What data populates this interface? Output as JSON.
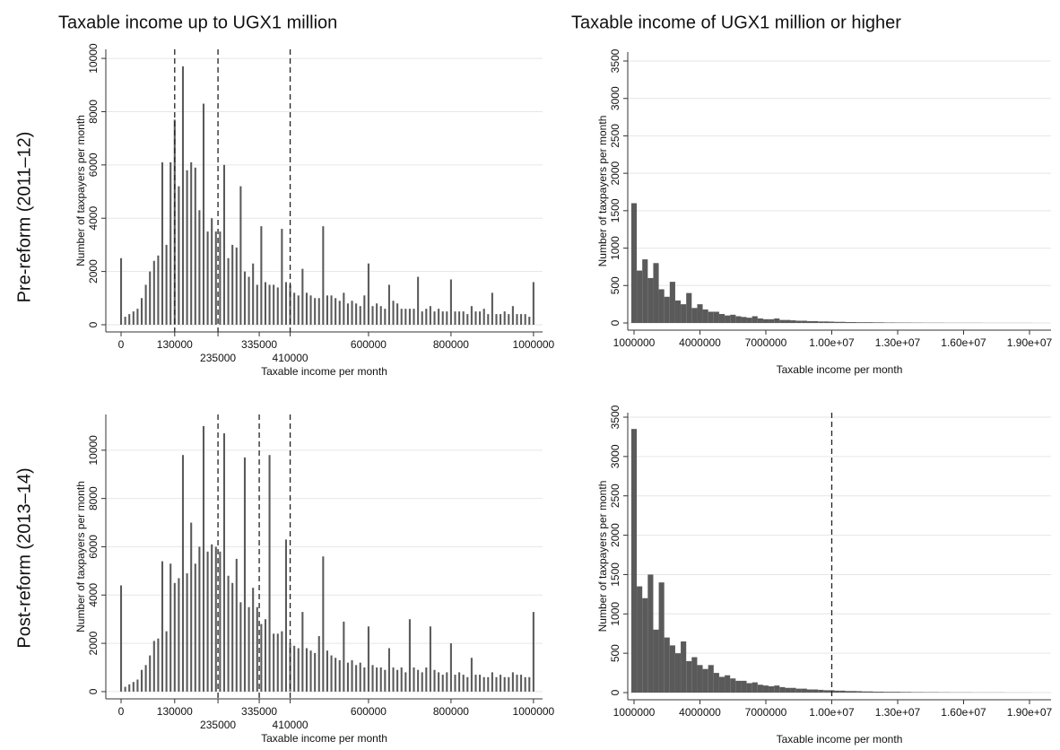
{
  "column_titles": [
    "Taxable income up to UGX1 million",
    "Taxable income of UGX1 million or higher"
  ],
  "row_labels": [
    "Pre-reform (2011–12)",
    "Post-reform (2013–14)"
  ],
  "chart_data": [
    {
      "type": "bar",
      "x_label": "Taxable income per month",
      "y_label": "Number of taxpayers per month",
      "color": "#5a5a5a",
      "grid": true,
      "xlim": [
        -37000,
        1022000
      ],
      "ylim": [
        -270,
        10340
      ],
      "xticks": [
        0,
        130000,
        235000,
        335000,
        410000,
        600000,
        800000,
        1000000
      ],
      "yticks": [
        0,
        2000,
        4000,
        6000,
        8000,
        10000
      ],
      "reference_lines": [
        130000,
        235000,
        410000
      ],
      "x": [
        0,
        10000,
        20000,
        30000,
        40000,
        50000,
        60000,
        70000,
        80000,
        90000,
        100000,
        110000,
        120000,
        130000,
        140000,
        150000,
        160000,
        170000,
        180000,
        190000,
        200000,
        210000,
        220000,
        230000,
        240000,
        250000,
        260000,
        270000,
        280000,
        290000,
        300000,
        310000,
        320000,
        330000,
        340000,
        350000,
        360000,
        370000,
        380000,
        390000,
        400000,
        410000,
        420000,
        430000,
        440000,
        450000,
        460000,
        470000,
        480000,
        490000,
        500000,
        510000,
        520000,
        530000,
        540000,
        550000,
        560000,
        570000,
        580000,
        590000,
        600000,
        610000,
        620000,
        630000,
        640000,
        650000,
        660000,
        670000,
        680000,
        690000,
        700000,
        710000,
        720000,
        730000,
        740000,
        750000,
        760000,
        770000,
        780000,
        790000,
        800000,
        810000,
        820000,
        830000,
        840000,
        850000,
        860000,
        870000,
        880000,
        890000,
        900000,
        910000,
        920000,
        930000,
        940000,
        950000,
        960000,
        970000,
        980000,
        990000,
        1000000
      ],
      "values": [
        2500,
        300,
        400,
        500,
        600,
        1000,
        1500,
        2000,
        2400,
        2600,
        6100,
        3000,
        6100,
        7700,
        5200,
        9700,
        5800,
        6100,
        5900,
        4300,
        8300,
        3500,
        4000,
        3500,
        3500,
        6000,
        2500,
        3000,
        2900,
        5200,
        2000,
        1800,
        2300,
        1500,
        3700,
        1600,
        1500,
        1500,
        1400,
        3600,
        1600,
        1500,
        1200,
        1100,
        2100,
        1200,
        1100,
        1000,
        1000,
        3700,
        1100,
        1100,
        1000,
        900,
        1200,
        800,
        900,
        800,
        700,
        1100,
        2300,
        700,
        800,
        700,
        600,
        1500,
        900,
        800,
        600,
        600,
        600,
        600,
        1800,
        500,
        600,
        700,
        500,
        600,
        500,
        500,
        1700,
        500,
        500,
        500,
        400,
        700,
        500,
        500,
        600,
        400,
        1200,
        400,
        400,
        500,
        400,
        700,
        400,
        400,
        400,
        300,
        1600
      ]
    },
    {
      "type": "bar",
      "x_label": "Taxable income per month",
      "y_label": "Number of taxpayers per month",
      "color": "#5a5a5a",
      "grid": true,
      "xlim": [
        714000,
        19980000
      ],
      "ylim": [
        -96,
        3620
      ],
      "xticks": [
        1000000,
        4000000,
        7000000,
        {
          "value": 10000000,
          "label": "1.00e+07"
        },
        {
          "value": 13000000,
          "label": "1.30e+07"
        },
        {
          "value": 16000000,
          "label": "1.60e+07"
        },
        {
          "value": 19000000,
          "label": "1.90e+07"
        }
      ],
      "yticks": [
        0,
        500,
        1000,
        1500,
        2000,
        2500,
        3000,
        3500
      ],
      "reference_lines": [],
      "x": [
        1000000,
        1250000,
        1500000,
        1750000,
        2000000,
        2250000,
        2500000,
        2750000,
        3000000,
        3250000,
        3500000,
        3750000,
        4000000,
        4250000,
        4500000,
        4750000,
        5000000,
        5250000,
        5500000,
        5750000,
        6000000,
        6250000,
        6500000,
        6750000,
        7000000,
        7250000,
        7500000,
        7750000,
        8000000,
        8250000,
        8500000,
        8750000,
        9000000,
        9250000,
        9500000,
        9750000,
        10000000,
        10250000,
        10500000,
        10750000,
        11000000,
        11250000,
        11500000,
        11750000,
        12000000,
        12250000,
        12500000,
        12750000,
        13000000,
        13250000,
        13500000,
        13750000,
        14000000,
        14250000,
        14500000,
        14750000,
        15000000,
        15250000,
        15500000,
        15750000,
        16000000,
        16250000,
        16500000,
        16750000,
        17000000,
        17250000,
        17500000,
        17750000,
        18000000,
        18250000,
        18500000,
        18750000,
        19000000
      ],
      "values": [
        1600,
        700,
        850,
        600,
        800,
        450,
        350,
        550,
        300,
        250,
        400,
        200,
        250,
        180,
        150,
        150,
        120,
        100,
        110,
        90,
        80,
        70,
        90,
        60,
        50,
        50,
        60,
        40,
        40,
        35,
        30,
        30,
        25,
        25,
        20,
        20,
        18,
        15,
        15,
        12,
        12,
        10,
        10,
        10,
        8,
        8,
        6,
        6,
        5,
        5,
        5,
        4,
        4,
        3,
        3,
        3,
        3,
        2,
        2,
        2,
        2,
        2,
        2,
        2,
        1,
        1,
        1,
        1,
        1,
        1,
        1,
        1,
        1
      ]
    },
    {
      "type": "bar",
      "x_label": "Taxable income per month",
      "y_label": "Number of taxpayers per month",
      "color": "#5a5a5a",
      "grid": true,
      "xlim": [
        -37000,
        1022000
      ],
      "ylim": [
        -300,
        11480
      ],
      "xticks": [
        0,
        130000,
        235000,
        335000,
        410000,
        600000,
        800000,
        1000000
      ],
      "yticks": [
        0,
        2000,
        4000,
        6000,
        8000,
        10000
      ],
      "reference_lines": [
        235000,
        335000,
        410000
      ],
      "x": [
        0,
        10000,
        20000,
        30000,
        40000,
        50000,
        60000,
        70000,
        80000,
        90000,
        100000,
        110000,
        120000,
        130000,
        140000,
        150000,
        160000,
        170000,
        180000,
        190000,
        200000,
        210000,
        220000,
        230000,
        240000,
        250000,
        260000,
        270000,
        280000,
        290000,
        300000,
        310000,
        320000,
        330000,
        340000,
        350000,
        360000,
        370000,
        380000,
        390000,
        400000,
        410000,
        420000,
        430000,
        440000,
        450000,
        460000,
        470000,
        480000,
        490000,
        500000,
        510000,
        520000,
        530000,
        540000,
        550000,
        560000,
        570000,
        580000,
        590000,
        600000,
        610000,
        620000,
        630000,
        640000,
        650000,
        660000,
        670000,
        680000,
        690000,
        700000,
        710000,
        720000,
        730000,
        740000,
        750000,
        760000,
        770000,
        780000,
        790000,
        800000,
        810000,
        820000,
        830000,
        840000,
        850000,
        860000,
        870000,
        880000,
        890000,
        900000,
        910000,
        920000,
        930000,
        940000,
        950000,
        960000,
        970000,
        980000,
        990000,
        1000000
      ],
      "values": [
        4400,
        200,
        300,
        400,
        500,
        900,
        1100,
        1500,
        2100,
        2200,
        5400,
        2500,
        5300,
        4500,
        4700,
        9800,
        4900,
        7000,
        5300,
        6000,
        11000,
        5800,
        6100,
        6000,
        5800,
        10700,
        4800,
        4500,
        5500,
        3700,
        9700,
        3500,
        4300,
        3500,
        2800,
        3000,
        9800,
        2400,
        2400,
        2500,
        6300,
        2000,
        1900,
        1800,
        3300,
        1800,
        1700,
        1600,
        2300,
        5600,
        1700,
        1500,
        1400,
        1300,
        2900,
        1200,
        1300,
        1100,
        1200,
        1000,
        2700,
        1100,
        1000,
        1000,
        900,
        1800,
        1000,
        900,
        1000,
        800,
        3000,
        1000,
        900,
        800,
        1000,
        2700,
        900,
        800,
        700,
        800,
        2000,
        700,
        800,
        700,
        600,
        1400,
        700,
        700,
        600,
        600,
        800,
        600,
        700,
        600,
        600,
        800,
        700,
        700,
        600,
        600,
        3300
      ]
    },
    {
      "type": "bar",
      "x_label": "Taxable income per month",
      "y_label": "Number of taxpayers per month",
      "color": "#5a5a5a",
      "grid": true,
      "xlim": [
        714000,
        19980000
      ],
      "ylim": [
        -91,
        3557
      ],
      "xticks": [
        1000000,
        4000000,
        7000000,
        {
          "value": 10000000,
          "label": "1.00e+07"
        },
        {
          "value": 13000000,
          "label": "1.30e+07"
        },
        {
          "value": 16000000,
          "label": "1.60e+07"
        },
        {
          "value": 19000000,
          "label": "1.90e+07"
        }
      ],
      "yticks": [
        0,
        500,
        1000,
        1500,
        2000,
        2500,
        3000,
        3500
      ],
      "reference_lines": [
        10000000
      ],
      "x": [
        1000000,
        1250000,
        1500000,
        1750000,
        2000000,
        2250000,
        2500000,
        2750000,
        3000000,
        3250000,
        3500000,
        3750000,
        4000000,
        4250000,
        4500000,
        4750000,
        5000000,
        5250000,
        5500000,
        5750000,
        6000000,
        6250000,
        6500000,
        6750000,
        7000000,
        7250000,
        7500000,
        7750000,
        8000000,
        8250000,
        8500000,
        8750000,
        9000000,
        9250000,
        9500000,
        9750000,
        10000000,
        10250000,
        10500000,
        10750000,
        11000000,
        11250000,
        11500000,
        11750000,
        12000000,
        12250000,
        12500000,
        12750000,
        13000000,
        13250000,
        13500000,
        13750000,
        14000000,
        14250000,
        14500000,
        14750000,
        15000000,
        15250000,
        15500000,
        15750000,
        16000000,
        16250000,
        16500000,
        16750000,
        17000000,
        17250000,
        17500000,
        17750000,
        18000000,
        18250000,
        18500000,
        18750000,
        19000000
      ],
      "values": [
        3350,
        1350,
        1200,
        1500,
        800,
        1400,
        700,
        600,
        500,
        650,
        400,
        450,
        350,
        300,
        350,
        250,
        200,
        220,
        180,
        150,
        150,
        120,
        130,
        100,
        90,
        80,
        90,
        70,
        60,
        60,
        50,
        50,
        40,
        40,
        35,
        30,
        30,
        25,
        25,
        20,
        20,
        18,
        15,
        15,
        12,
        12,
        10,
        10,
        10,
        8,
        8,
        6,
        6,
        5,
        5,
        5,
        4,
        4,
        3,
        3,
        3,
        3,
        2,
        2,
        2,
        2,
        2,
        2,
        1,
        1,
        1,
        1,
        1
      ]
    }
  ]
}
